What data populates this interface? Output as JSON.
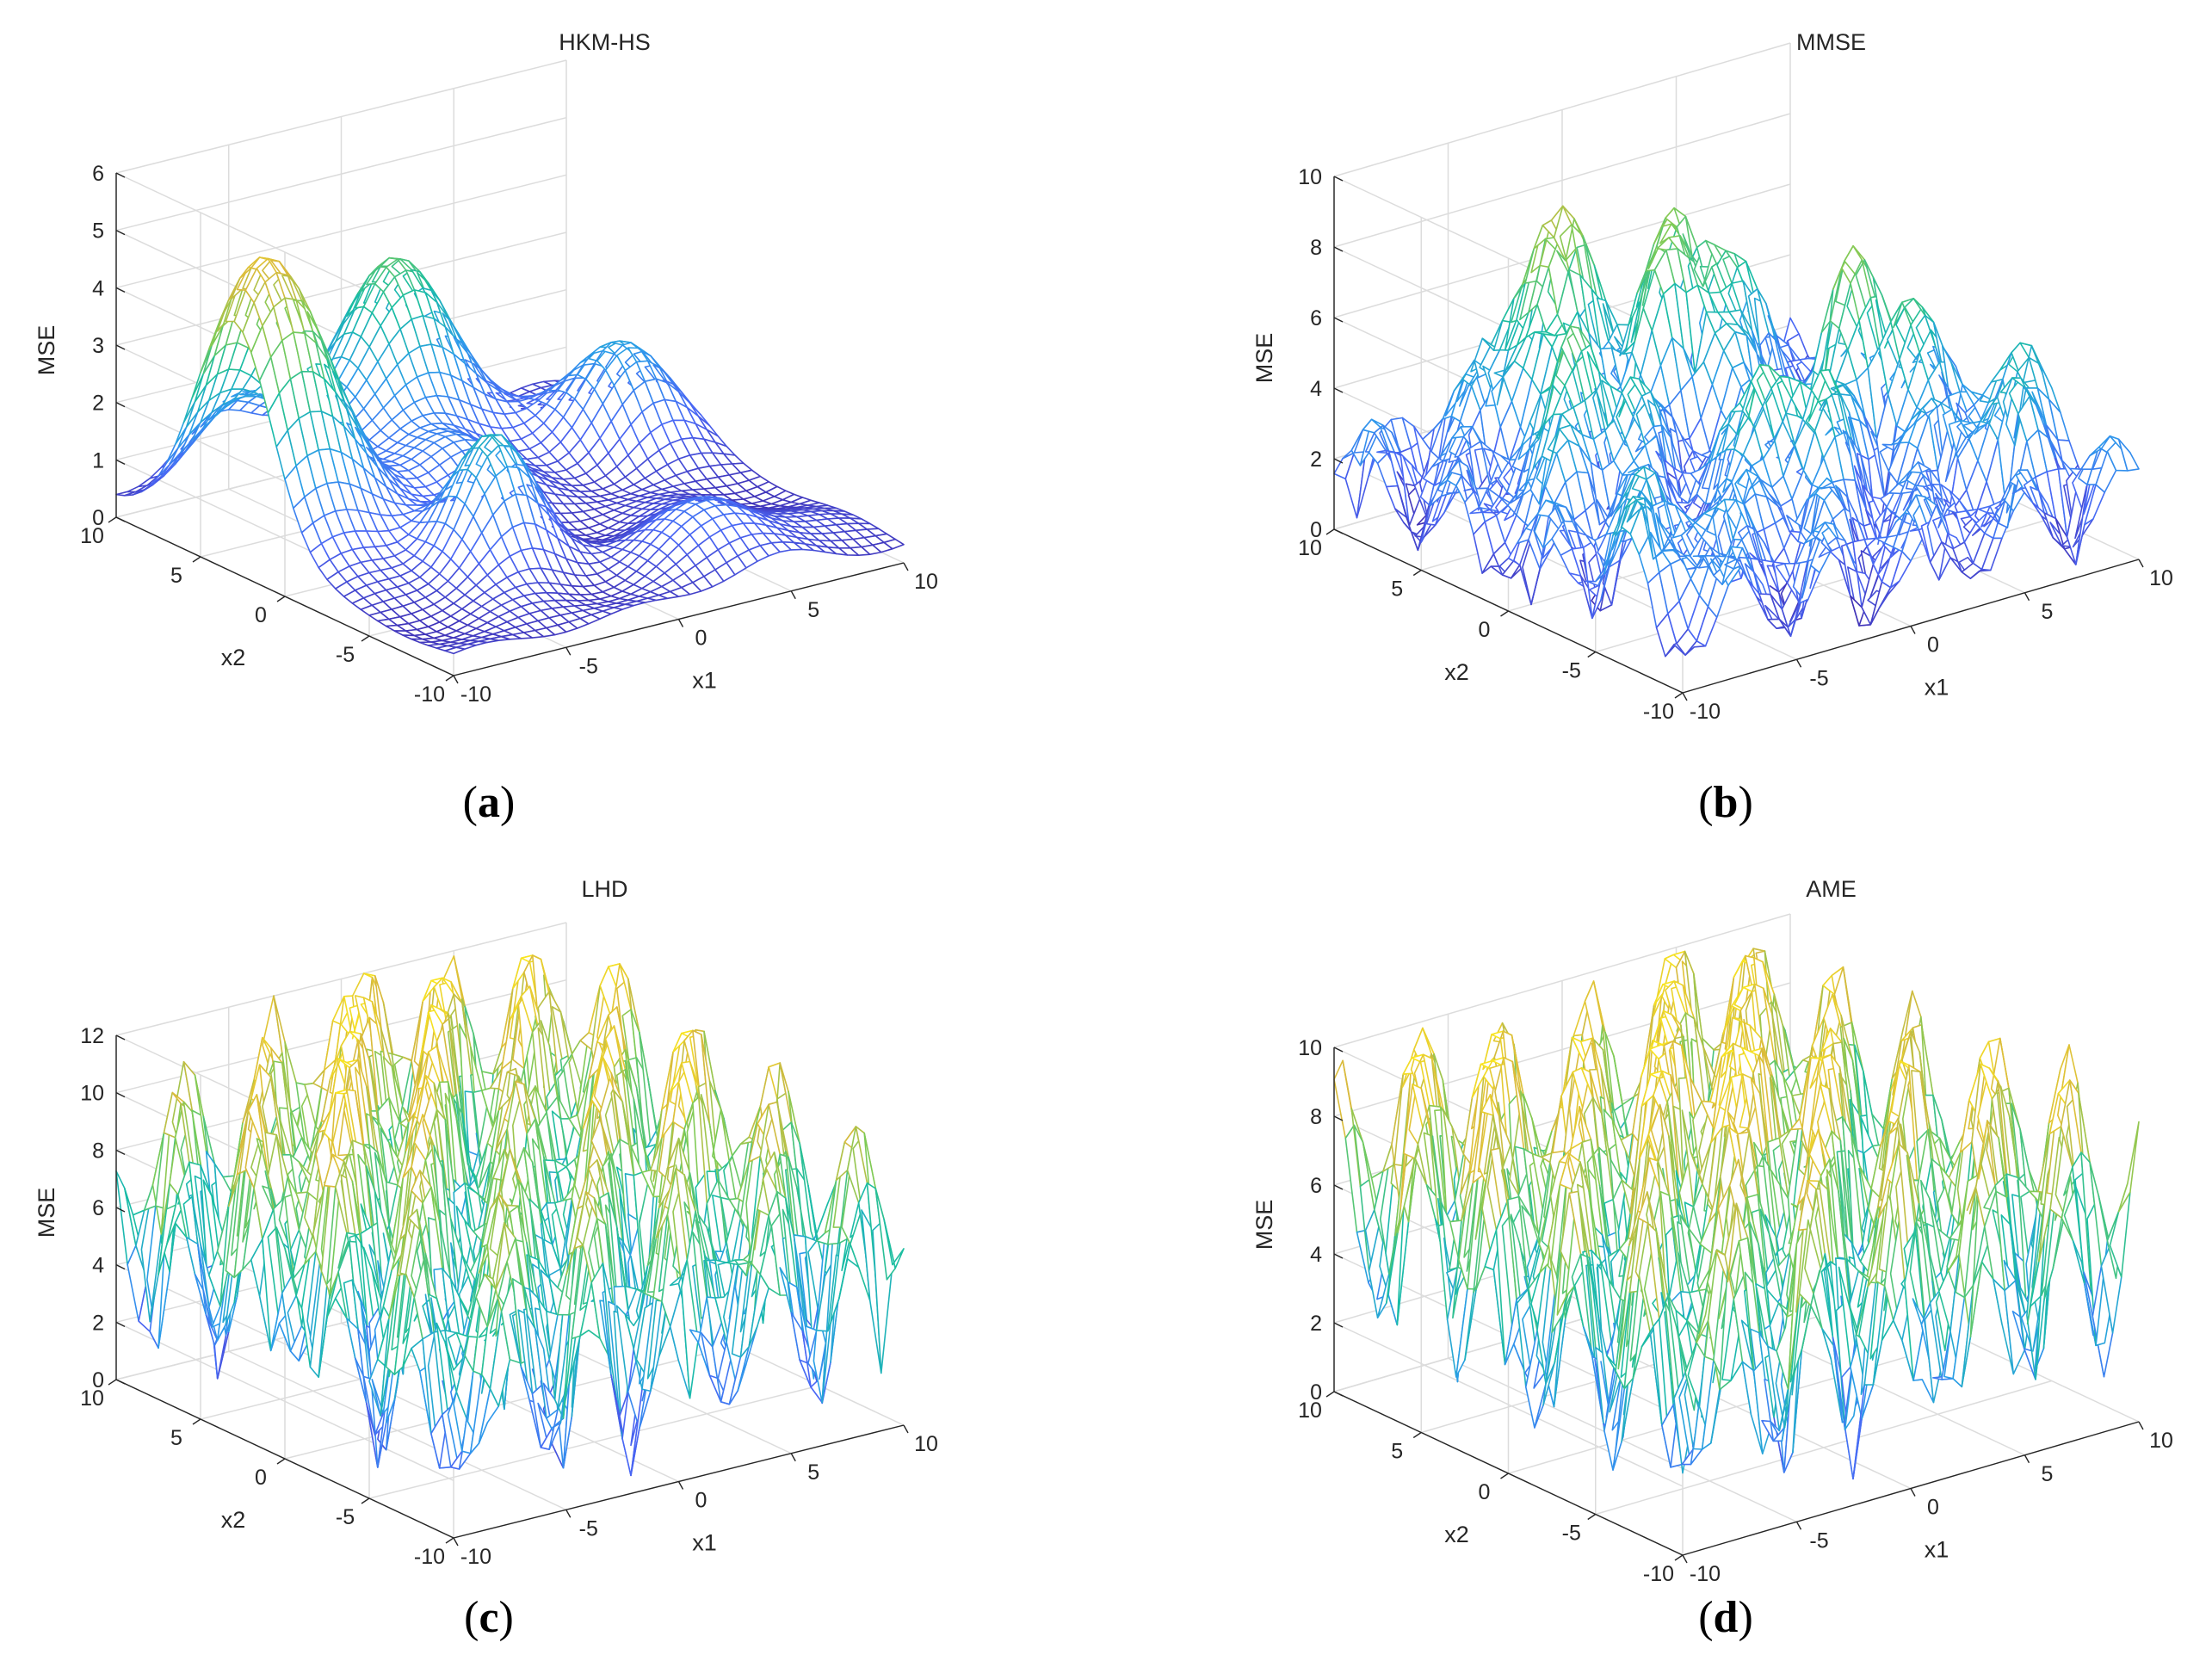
{
  "colors": {
    "background": "#ffffff",
    "grid": "#dcdcdc",
    "axis": "#262626",
    "colormap": [
      "#3e26a8",
      "#4a67f5",
      "#2c9cea",
      "#19bda4",
      "#7ccb57",
      "#d9ba3d",
      "#f9e520"
    ]
  },
  "chart_data": [
    {
      "type": "surface",
      "title": "HKM-HS",
      "panel_label": "a",
      "xlabel": "x1",
      "ylabel": "x2",
      "zlabel": "MSE",
      "xlim": [
        -10,
        10
      ],
      "ylim": [
        -10,
        10
      ],
      "zlim": [
        0,
        6
      ],
      "xticks": [
        "-10",
        "-5",
        "0",
        "5",
        "10"
      ],
      "yticks": [
        "-10",
        "-5",
        "0",
        "5",
        "10"
      ],
      "zticks": [
        "0",
        "1",
        "2",
        "3",
        "4",
        "5",
        "6"
      ],
      "grid": true,
      "surface": {
        "base": 0.35,
        "peaks": [
          {
            "x1": -8.5,
            "x2": 3.0,
            "height": 5.0,
            "spread": 2.3
          },
          {
            "x1": 1.0,
            "x2": 8.0,
            "height": 3.3,
            "spread": 2.2
          },
          {
            "x1": -3.5,
            "x2": -3.5,
            "height": 2.3,
            "spread": 1.6
          },
          {
            "x1": 7.5,
            "x2": 3.5,
            "height": 1.9,
            "spread": 1.8
          },
          {
            "x1": -5.5,
            "x2": 8.0,
            "height": 1.4,
            "spread": 2.0
          },
          {
            "x1": 4.0,
            "x2": -7.0,
            "height": 1.0,
            "spread": 2.0
          },
          {
            "x1": -1.0,
            "x2": 2.0,
            "height": 1.2,
            "spread": 1.8
          }
        ],
        "ripple": {
          "amplitude": 0.15,
          "frequency": 0.9,
          "dip": 0.0
        }
      }
    },
    {
      "type": "surface",
      "title": "MMSE",
      "panel_label": "b",
      "xlabel": "x1",
      "ylabel": "x2",
      "zlabel": "MSE",
      "xlim": [
        -10,
        10
      ],
      "ylim": [
        -10,
        10
      ],
      "zlim": [
        0,
        10
      ],
      "xticks": [
        "-10",
        "-5",
        "0",
        "5",
        "10"
      ],
      "yticks": [
        "-10",
        "-5",
        "0",
        "5",
        "10"
      ],
      "zticks": [
        "0",
        "2",
        "4",
        "6",
        "8",
        "10"
      ],
      "grid": true,
      "surface": {
        "base": 2.0,
        "peaks": [
          {
            "x1": -2.0,
            "x2": 8.0,
            "height": 5.5,
            "spread": 1.6
          },
          {
            "x1": 3.0,
            "x2": 6.5,
            "height": 5.5,
            "spread": 1.6
          },
          {
            "x1": -5.0,
            "x2": 2.0,
            "height": 4.0,
            "spread": 1.5
          },
          {
            "x1": 6.0,
            "x2": 0.0,
            "height": 4.5,
            "spread": 1.6
          },
          {
            "x1": 0.0,
            "x2": -3.0,
            "height": 3.5,
            "spread": 1.6
          },
          {
            "x1": -8.0,
            "x2": -6.0,
            "height": 2.0,
            "spread": 1.8
          },
          {
            "x1": 8.0,
            "x2": -5.0,
            "height": 2.5,
            "spread": 1.6
          }
        ],
        "ripple": {
          "amplitude": 1.4,
          "frequency": 1.5,
          "dip": 2.0
        }
      }
    },
    {
      "type": "surface",
      "title": "LHD",
      "panel_label": "c",
      "xlabel": "x1",
      "ylabel": "x2",
      "zlabel": "MSE",
      "xlim": [
        -10,
        10
      ],
      "ylim": [
        -10,
        10
      ],
      "zlim": [
        0,
        12
      ],
      "xticks": [
        "-10",
        "-5",
        "0",
        "5",
        "10"
      ],
      "yticks": [
        "-10",
        "-5",
        "0",
        "5",
        "10"
      ],
      "zticks": [
        "0",
        "2",
        "4",
        "6",
        "8",
        "10",
        "12"
      ],
      "grid": true,
      "surface": {
        "base": 6.0,
        "peaks": [
          {
            "x1": 0.0,
            "x2": 8.0,
            "height": 4.0,
            "spread": 3.0
          },
          {
            "x1": -6.0,
            "x2": 2.0,
            "height": 3.0,
            "spread": 2.5
          },
          {
            "x1": 6.0,
            "x2": -2.0,
            "height": 3.0,
            "spread": 2.5
          },
          {
            "x1": 8.0,
            "x2": 7.0,
            "height": 3.0,
            "spread": 2.5
          }
        ],
        "ripple": {
          "amplitude": 4.5,
          "frequency": 1.6,
          "dip": 4.0
        }
      }
    },
    {
      "type": "surface",
      "title": "AME",
      "panel_label": "d",
      "xlabel": "x1",
      "ylabel": "x2",
      "zlabel": "MSE",
      "xlim": [
        -10,
        10
      ],
      "ylim": [
        -10,
        10
      ],
      "zlim": [
        0,
        10
      ],
      "xticks": [
        "-10",
        "-5",
        "0",
        "5",
        "10"
      ],
      "yticks": [
        "-10",
        "-5",
        "0",
        "5",
        "10"
      ],
      "zticks": [
        "0",
        "2",
        "4",
        "6",
        "8",
        "10"
      ],
      "grid": true,
      "surface": {
        "base": 5.5,
        "peaks": [
          {
            "x1": 0.0,
            "x2": 1.0,
            "height": 3.0,
            "spread": 3.0
          },
          {
            "x1": -7.0,
            "x2": 6.0,
            "height": 2.5,
            "spread": 2.5
          },
          {
            "x1": 5.0,
            "x2": 7.0,
            "height": 2.5,
            "spread": 2.5
          },
          {
            "x1": 7.0,
            "x2": -5.0,
            "height": 1.5,
            "spread": 2.5
          }
        ],
        "ripple": {
          "amplitude": 4.0,
          "frequency": 1.7,
          "dip": 3.5
        }
      }
    }
  ]
}
